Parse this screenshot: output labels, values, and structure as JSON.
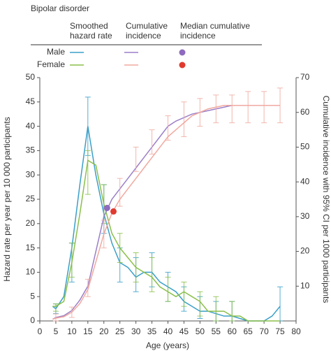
{
  "chart_data": {
    "type": "line",
    "title": "Bipolar disorder",
    "legend": {
      "columns": [
        "Smoothed hazard rate",
        "Cumulative incidence",
        "Median cumulative incidence"
      ],
      "rows": [
        "Male",
        "Female"
      ]
    },
    "xlabel": "Age (years)",
    "ylabel": "Hazard rate per year per 10 000 participants",
    "y2label": "Cumulative incidence with 95% CI per 1000 participants",
    "xlim": [
      0,
      80
    ],
    "xticks": [
      0,
      5,
      10,
      15,
      20,
      25,
      30,
      35,
      40,
      45,
      50,
      55,
      60,
      65,
      70,
      75,
      80
    ],
    "ylim": [
      0,
      50
    ],
    "yticks": [
      0,
      5,
      10,
      15,
      20,
      25,
      30,
      35,
      40,
      45,
      50
    ],
    "y2lim": [
      0,
      70
    ],
    "y2ticks": [
      10,
      20,
      30,
      40,
      50,
      60,
      70
    ],
    "grid": false,
    "x": [
      4,
      5,
      7.5,
      10,
      12.5,
      15,
      17.5,
      20,
      22.5,
      25,
      27.5,
      30,
      32.5,
      35,
      37.5,
      40,
      42.5,
      45,
      47.5,
      50,
      52.5,
      55,
      57.5,
      60,
      62.5,
      65,
      67.5,
      70,
      72.5,
      75
    ],
    "series": [
      {
        "row": 0,
        "column": 0,
        "color": "#3a9fc8",
        "axis": "y",
        "values": [
          3,
          2.5,
          5,
          15,
          28,
          40,
          30,
          22,
          16,
          12,
          11,
          9,
          10,
          10,
          8,
          7,
          6,
          4,
          3,
          2,
          2,
          1.5,
          1,
          1,
          0.5,
          0,
          0,
          0,
          1,
          3
        ],
        "ci_low": [
          null,
          1.5,
          null,
          8,
          null,
          34,
          null,
          18,
          null,
          8,
          null,
          6,
          null,
          7,
          null,
          4,
          null,
          2,
          null,
          0.5,
          null,
          0,
          null,
          0,
          null,
          null,
          null,
          null,
          null,
          0
        ],
        "ci_high": [
          null,
          3.5,
          null,
          16,
          null,
          46,
          null,
          28,
          null,
          15,
          null,
          13,
          null,
          14,
          null,
          10,
          null,
          7,
          null,
          5,
          null,
          4,
          null,
          4,
          null,
          null,
          null,
          null,
          null,
          7
        ]
      },
      {
        "row": 1,
        "column": 0,
        "color": "#8bbf4a",
        "axis": "y",
        "values": [
          3,
          3,
          4,
          12,
          22,
          33,
          32,
          24,
          18,
          15,
          13,
          11,
          10,
          9,
          7,
          6,
          5,
          6,
          5,
          4,
          2,
          2,
          2,
          1,
          1,
          0,
          0,
          0,
          0,
          0
        ],
        "ci_low": [
          null,
          2,
          null,
          9,
          null,
          26,
          null,
          20,
          null,
          12,
          null,
          8,
          null,
          6,
          null,
          4,
          null,
          3,
          null,
          1,
          null,
          0,
          null,
          0,
          null,
          null,
          null,
          null,
          null,
          null
        ],
        "ci_high": [
          null,
          3.5,
          null,
          16,
          null,
          35,
          null,
          28,
          null,
          18,
          null,
          14,
          null,
          13,
          null,
          9,
          null,
          8,
          null,
          6,
          null,
          5,
          null,
          4,
          null,
          null,
          null,
          null,
          null,
          null
        ]
      },
      {
        "row": 0,
        "column": 1,
        "color": "#9b7fc8",
        "axis": "y2",
        "values": [
          0.5,
          1,
          1.5,
          3,
          6,
          10,
          20,
          30,
          35,
          38,
          41,
          44,
          47,
          50,
          53,
          56,
          57.5,
          58.5,
          59.5,
          60,
          60.5,
          61,
          61.5,
          62,
          62,
          62,
          62,
          62,
          62,
          62
        ],
        "median_x": 21,
        "median_y": 32.5,
        "median_color": "#8e6bbf"
      },
      {
        "row": 1,
        "column": 1,
        "color": "#f0a9a0",
        "axis": "y2",
        "values": [
          0.5,
          0.8,
          1.2,
          2.5,
          5,
          9,
          17,
          25,
          31,
          35,
          38,
          41,
          44,
          47,
          50,
          53,
          55,
          57,
          59,
          60,
          61,
          61.5,
          62,
          62,
          62,
          62,
          62,
          62,
          62,
          62
        ],
        "ci_low": [
          null,
          0,
          null,
          1,
          null,
          7,
          null,
          21,
          null,
          33,
          null,
          43,
          null,
          48,
          null,
          52,
          null,
          53,
          null,
          56,
          null,
          57,
          null,
          57,
          null,
          57,
          null,
          57,
          null,
          57
        ],
        "ci_high": [
          null,
          2,
          null,
          4,
          null,
          12,
          null,
          29,
          null,
          41,
          null,
          50,
          null,
          55,
          null,
          59,
          null,
          63,
          null,
          64,
          null,
          65,
          null,
          65,
          null,
          66,
          null,
          66,
          null,
          67
        ],
        "median_x": 23,
        "median_y": 31.5,
        "median_color": "#e03a2e"
      }
    ]
  }
}
